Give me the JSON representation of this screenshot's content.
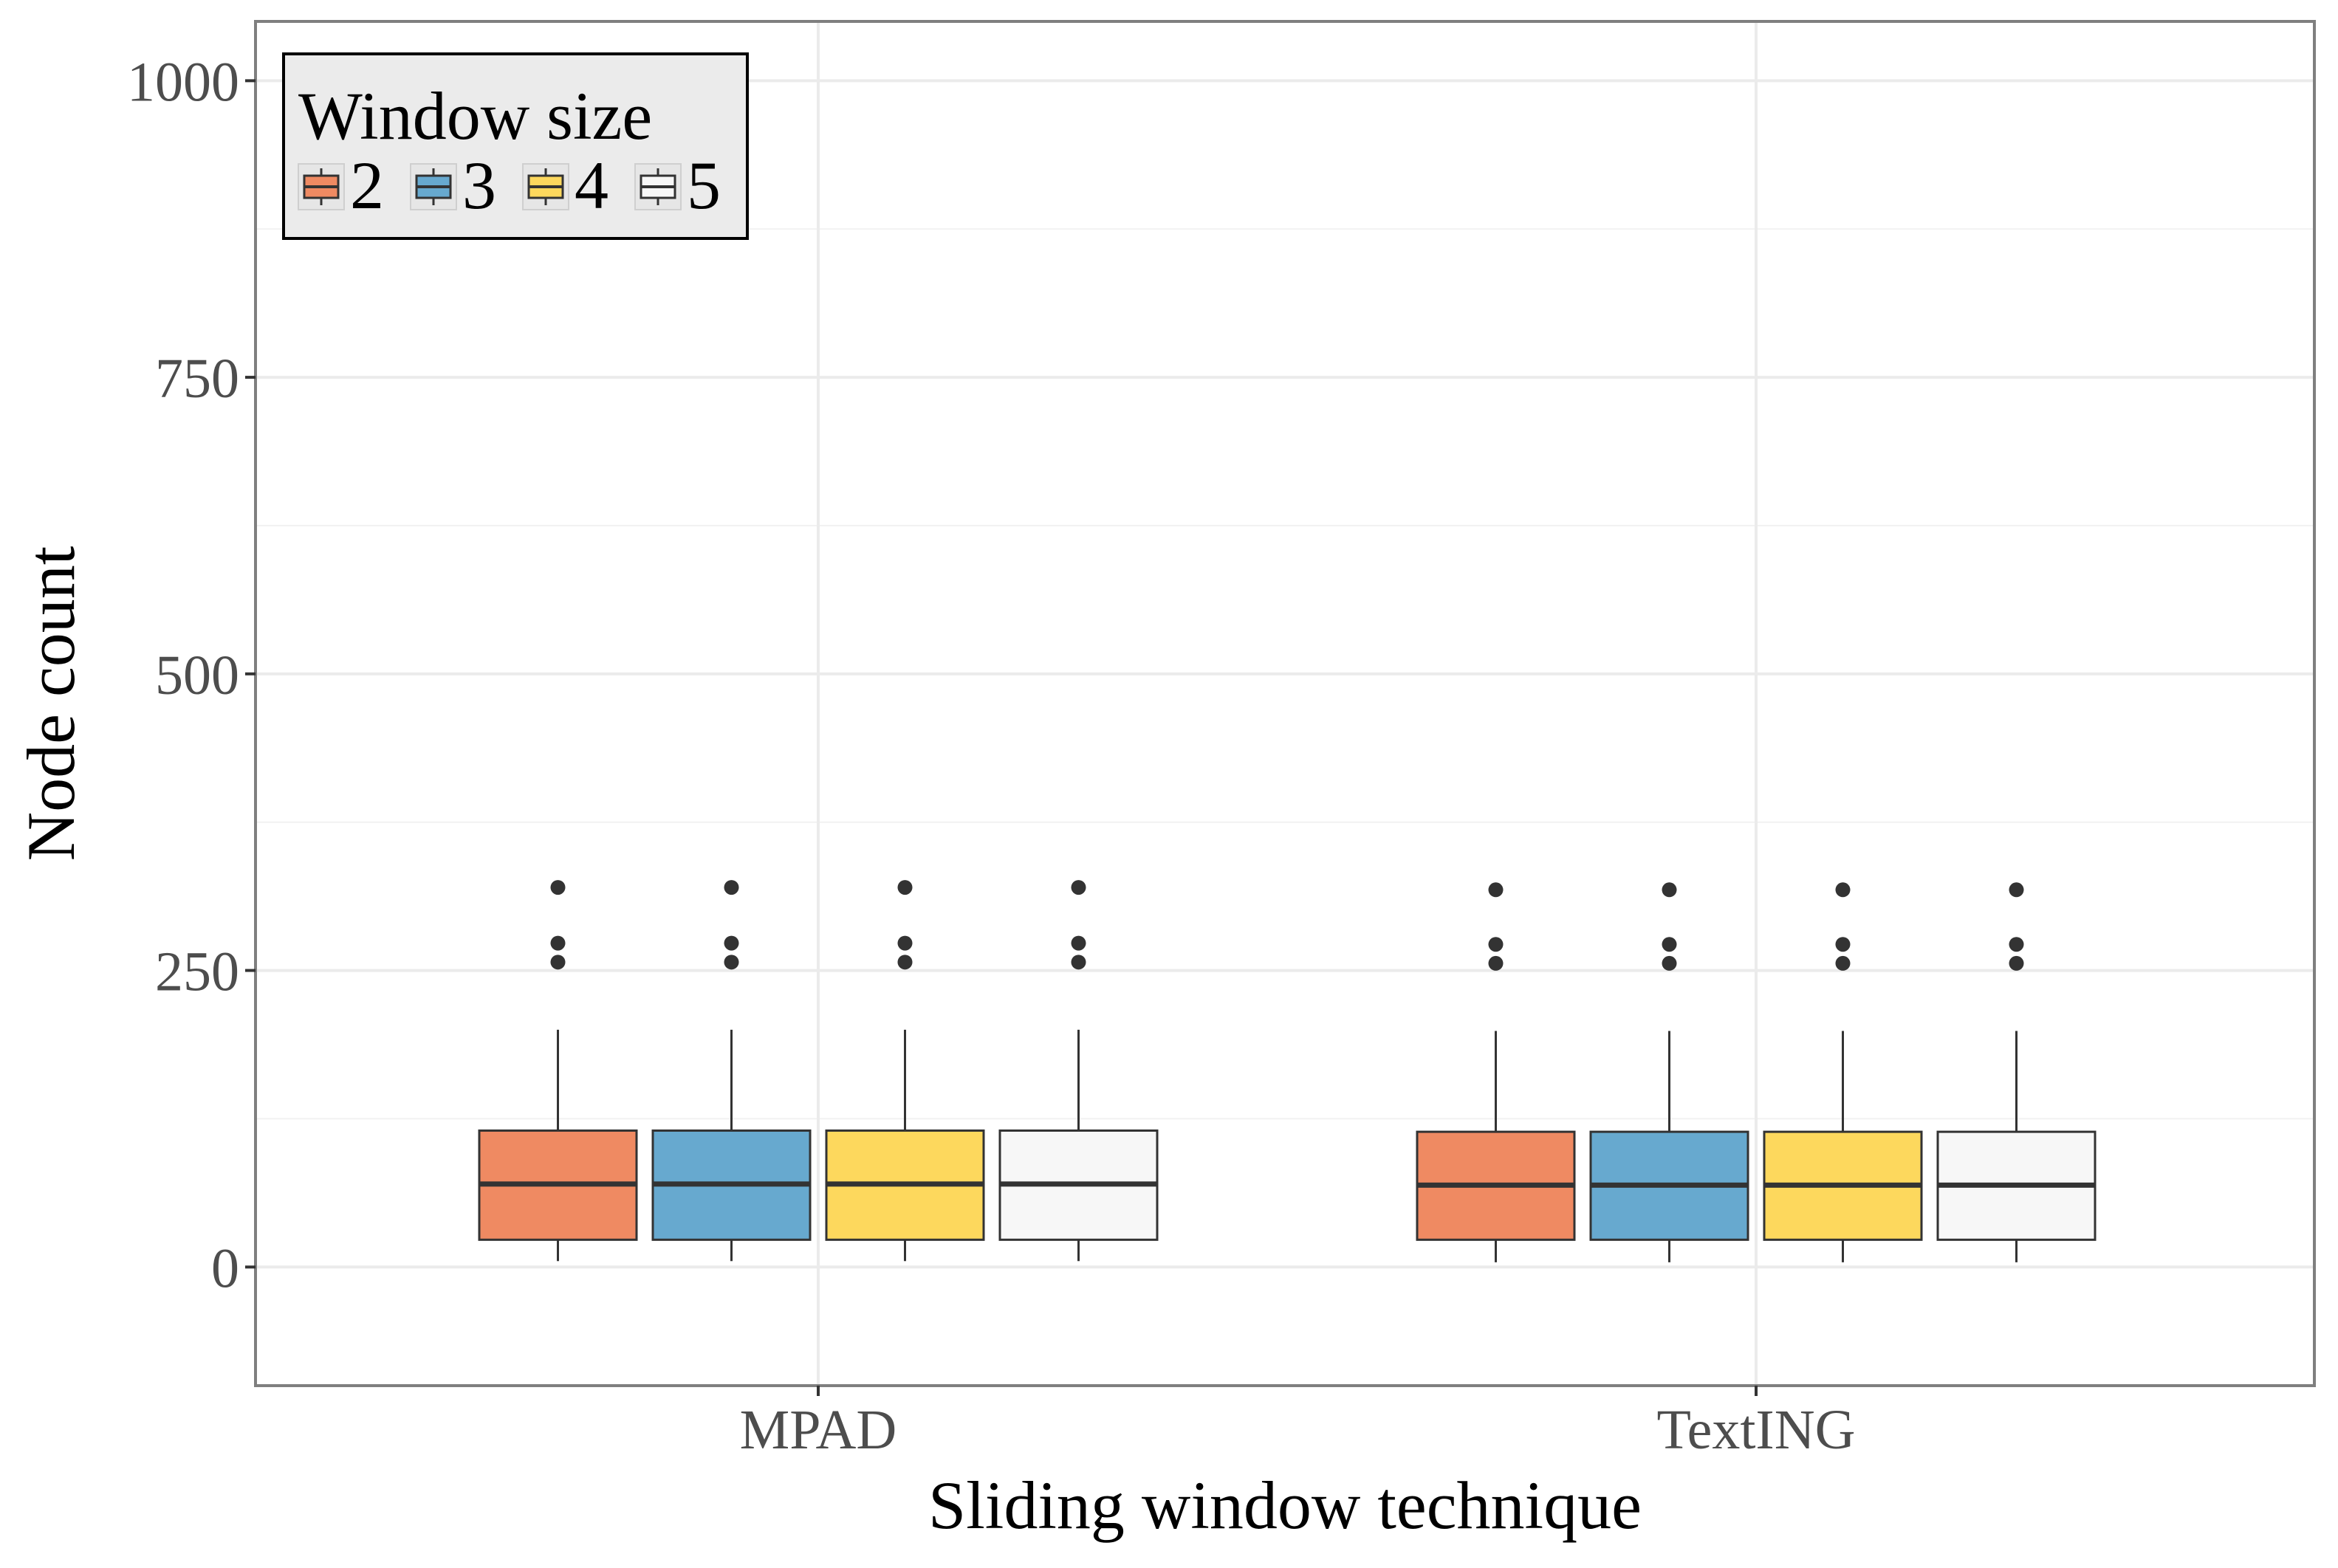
{
  "chart_data": {
    "type": "boxplot",
    "xlabel": "Sliding window technique",
    "ylabel": "Node count",
    "ylim": [
      -100,
      1050
    ],
    "yticks": [
      0,
      250,
      500,
      750,
      1000
    ],
    "categories": [
      "MPAD",
      "TextING"
    ],
    "legend": {
      "title": "Window size",
      "position": "top-left",
      "entries": [
        "2",
        "3",
        "4",
        "5"
      ]
    },
    "grid": true,
    "series": [
      {
        "name": "2",
        "color": "#EF8A62",
        "boxes": [
          {
            "category": "MPAD",
            "whisker_low": 5,
            "q1": 23,
            "median": 70,
            "q3": 115,
            "whisker_high": 200,
            "outliers": [
              257,
              273,
              320
            ]
          },
          {
            "category": "TextING",
            "whisker_low": 4,
            "q1": 23,
            "median": 69,
            "q3": 114,
            "whisker_high": 199,
            "outliers": [
              256,
              272,
              318
            ]
          }
        ]
      },
      {
        "name": "3",
        "color": "#67A9CF",
        "boxes": [
          {
            "category": "MPAD",
            "whisker_low": 5,
            "q1": 23,
            "median": 70,
            "q3": 115,
            "whisker_high": 200,
            "outliers": [
              257,
              273,
              320
            ]
          },
          {
            "category": "TextING",
            "whisker_low": 4,
            "q1": 23,
            "median": 69,
            "q3": 114,
            "whisker_high": 199,
            "outliers": [
              256,
              272,
              318
            ]
          }
        ]
      },
      {
        "name": "4",
        "color": "#FDD85D",
        "boxes": [
          {
            "category": "MPAD",
            "whisker_low": 5,
            "q1": 23,
            "median": 70,
            "q3": 115,
            "whisker_high": 200,
            "outliers": [
              257,
              273,
              320
            ]
          },
          {
            "category": "TextING",
            "whisker_low": 4,
            "q1": 23,
            "median": 69,
            "q3": 114,
            "whisker_high": 199,
            "outliers": [
              256,
              272,
              318
            ]
          }
        ]
      },
      {
        "name": "5",
        "color": "#F7F7F7",
        "boxes": [
          {
            "category": "MPAD",
            "whisker_low": 5,
            "q1": 23,
            "median": 70,
            "q3": 115,
            "whisker_high": 200,
            "outliers": [
              257,
              273,
              320
            ]
          },
          {
            "category": "TextING",
            "whisker_low": 4,
            "q1": 23,
            "median": 69,
            "q3": 114,
            "whisker_high": 199,
            "outliers": [
              256,
              272,
              318
            ]
          }
        ]
      }
    ]
  }
}
